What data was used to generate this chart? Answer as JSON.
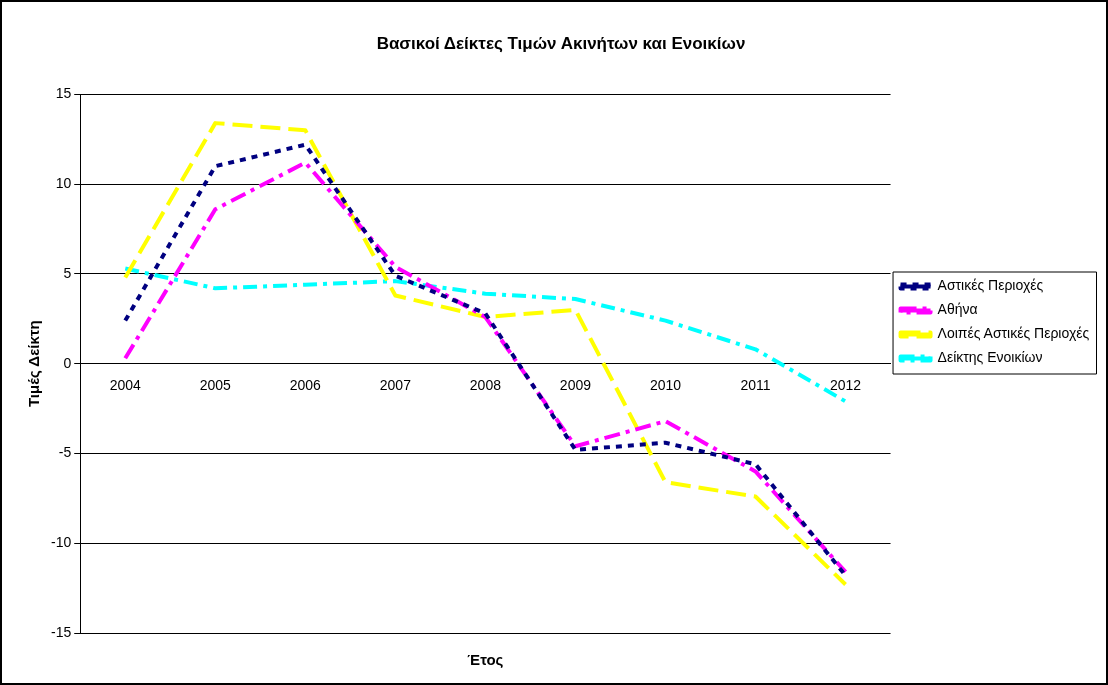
{
  "chart_data": {
    "type": "line",
    "title": "Βασικοί Δείκτες Τιμών Ακινήτων και Ενοικίων",
    "xlabel": "Έτος",
    "ylabel": "Τιμές Δείκτη",
    "categories": [
      "2004",
      "2005",
      "2006",
      "2007",
      "2008",
      "2009",
      "2010",
      "2011",
      "2012"
    ],
    "series": [
      {
        "name": "Αστικές Περιοχές",
        "color": "#000080",
        "values": [
          2.4,
          11.0,
          12.2,
          4.9,
          2.8,
          -4.8,
          -4.4,
          -5.6,
          -11.8
        ]
      },
      {
        "name": "Αθήνα",
        "color": "#ff00ff",
        "values": [
          0.3,
          8.6,
          11.2,
          5.4,
          2.6,
          -4.6,
          -3.2,
          -6.0,
          -11.6
        ]
      },
      {
        "name": "Λοιπές Αστικές Περιοχές",
        "color": "#ffff00",
        "values": [
          4.8,
          13.4,
          13.0,
          3.8,
          2.6,
          3.0,
          -6.6,
          -7.4,
          -12.3
        ]
      },
      {
        "name": "Δείκτης Ενοικίων",
        "color": "#00ffff",
        "values": [
          5.3,
          4.2,
          4.4,
          4.6,
          3.9,
          3.6,
          2.4,
          0.8,
          -2.1
        ]
      }
    ],
    "ylim": [
      -15,
      15
    ],
    "yticks": [
      -15,
      -10,
      -5,
      0,
      5,
      10,
      15
    ],
    "grid": "y",
    "legend": "right",
    "marker": "none",
    "line_style": "dashed"
  }
}
